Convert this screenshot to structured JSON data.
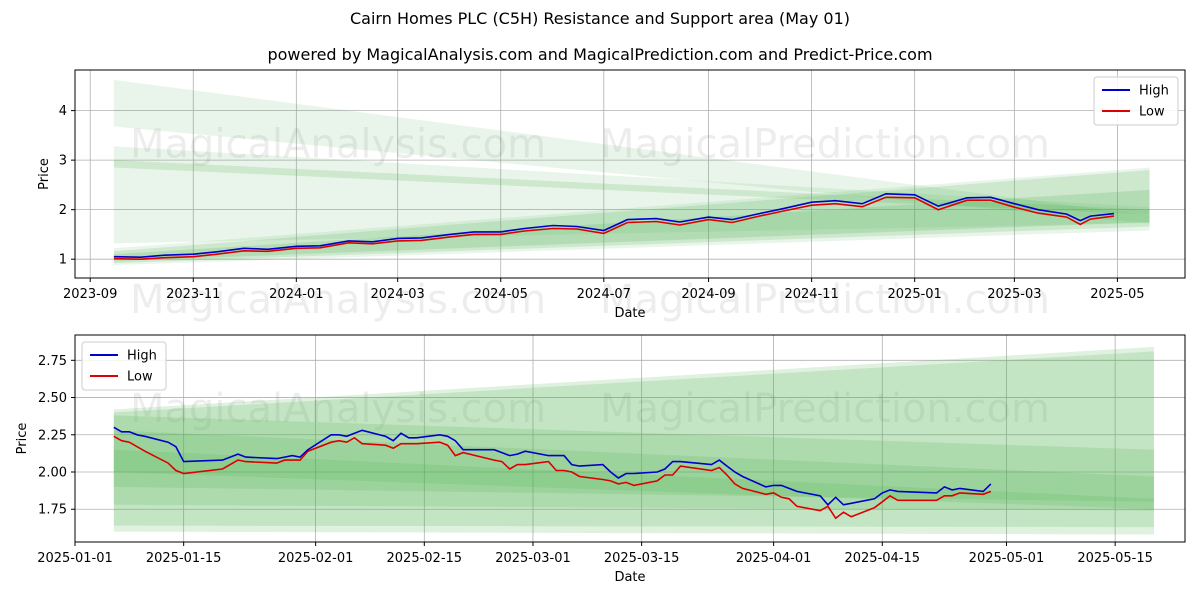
{
  "title": "Cairn Homes PLC (C5H) Resistance and Support area (May 01)",
  "subtitle": "powered by MagicalAnalysis.com and MagicalPrediction.com and Predict-Price.com",
  "watermarks": [
    "MagicalAnalysis.com",
    "MagicalPrediction.com"
  ],
  "colors": {
    "high": "#0000cc",
    "low": "#dd0000",
    "band": "#4caf50",
    "grid": "#b0b0b0"
  },
  "chart_data": [
    {
      "type": "line",
      "panel": "top",
      "xlabel": "Date",
      "ylabel": "Price",
      "x_type": "date",
      "xlim": [
        "2023-08-23",
        "2025-06-10"
      ],
      "ylim": [
        0.62,
        4.82
      ],
      "x_ticks": [
        "2023-09",
        "2023-11",
        "2024-01",
        "2024-03",
        "2024-05",
        "2024-07",
        "2024-09",
        "2024-11",
        "2025-01",
        "2025-03",
        "2025-05"
      ],
      "y_ticks": [
        1,
        2,
        3,
        4
      ],
      "legend": [
        "High",
        "Low"
      ],
      "legend_position": "top-right",
      "grid": true,
      "series": [
        {
          "name": "High",
          "x": [
            "2023-09-15",
            "2023-10-01",
            "2023-10-15",
            "2023-11-01",
            "2023-11-15",
            "2023-12-01",
            "2023-12-15",
            "2024-01-01",
            "2024-01-15",
            "2024-02-01",
            "2024-02-15",
            "2024-03-01",
            "2024-03-15",
            "2024-04-01",
            "2024-04-15",
            "2024-05-01",
            "2024-05-15",
            "2024-06-01",
            "2024-06-15",
            "2024-07-01",
            "2024-07-15",
            "2024-08-01",
            "2024-08-15",
            "2024-09-01",
            "2024-09-15",
            "2024-10-01",
            "2024-10-15",
            "2024-11-01",
            "2024-11-15",
            "2024-12-01",
            "2024-12-15",
            "2025-01-01",
            "2025-01-15",
            "2025-02-01",
            "2025-02-15",
            "2025-03-01",
            "2025-03-15",
            "2025-04-01",
            "2025-04-09",
            "2025-04-15",
            "2025-04-29"
          ],
          "values": [
            1.05,
            1.04,
            1.08,
            1.1,
            1.15,
            1.22,
            1.2,
            1.26,
            1.27,
            1.37,
            1.35,
            1.42,
            1.43,
            1.5,
            1.55,
            1.55,
            1.62,
            1.68,
            1.66,
            1.58,
            1.8,
            1.82,
            1.75,
            1.85,
            1.8,
            1.92,
            2.02,
            2.15,
            2.18,
            2.12,
            2.32,
            2.3,
            2.07,
            2.24,
            2.25,
            2.12,
            2.0,
            1.91,
            1.78,
            1.87,
            1.92
          ]
        },
        {
          "name": "Low",
          "x": [
            "2023-09-15",
            "2023-10-01",
            "2023-10-15",
            "2023-11-01",
            "2023-11-15",
            "2023-12-01",
            "2023-12-15",
            "2024-01-01",
            "2024-01-15",
            "2024-02-01",
            "2024-02-15",
            "2024-03-01",
            "2024-03-15",
            "2024-04-01",
            "2024-04-15",
            "2024-05-01",
            "2024-05-15",
            "2024-06-01",
            "2024-06-15",
            "2024-07-01",
            "2024-07-15",
            "2024-08-01",
            "2024-08-15",
            "2024-09-01",
            "2024-09-15",
            "2024-10-01",
            "2024-10-15",
            "2024-11-01",
            "2024-11-15",
            "2024-12-01",
            "2024-12-15",
            "2025-01-01",
            "2025-01-15",
            "2025-02-01",
            "2025-02-15",
            "2025-03-01",
            "2025-03-15",
            "2025-04-01",
            "2025-04-09",
            "2025-04-15",
            "2025-04-29"
          ],
          "values": [
            1.01,
            1.0,
            1.03,
            1.05,
            1.1,
            1.17,
            1.16,
            1.22,
            1.23,
            1.33,
            1.31,
            1.37,
            1.38,
            1.45,
            1.5,
            1.5,
            1.57,
            1.62,
            1.61,
            1.52,
            1.74,
            1.76,
            1.69,
            1.8,
            1.74,
            1.87,
            1.97,
            2.09,
            2.12,
            2.06,
            2.25,
            2.24,
            2.0,
            2.19,
            2.19,
            2.05,
            1.93,
            1.85,
            1.7,
            1.81,
            1.87
          ]
        }
      ],
      "bands": [
        {
          "x": [
            "2023-09-15",
            "2025-05-20"
          ],
          "upper": [
            4.62,
            1.88
          ],
          "lower": [
            3.68,
            1.72
          ],
          "opacity": 0.12
        },
        {
          "x": [
            "2023-09-15",
            "2025-05-20"
          ],
          "upper": [
            3.28,
            2.05
          ],
          "lower": [
            1.32,
            1.73
          ],
          "opacity": 0.12
        },
        {
          "x": [
            "2023-09-15",
            "2025-05-20"
          ],
          "upper": [
            3.0,
            2.0
          ],
          "lower": [
            2.85,
            1.9
          ],
          "opacity": 0.18
        },
        {
          "x": [
            "2023-09-15",
            "2025-05-20"
          ],
          "upper": [
            1.22,
            2.85
          ],
          "lower": [
            0.88,
            1.58
          ],
          "opacity": 0.12
        },
        {
          "x": [
            "2023-09-15",
            "2025-05-20"
          ],
          "upper": [
            1.16,
            2.8
          ],
          "lower": [
            0.92,
            1.66
          ],
          "opacity": 0.18
        },
        {
          "x": [
            "2023-09-15",
            "2025-05-20"
          ],
          "upper": [
            1.1,
            2.4
          ],
          "lower": [
            0.96,
            1.75
          ],
          "opacity": 0.2
        }
      ]
    },
    {
      "type": "line",
      "panel": "bottom",
      "xlabel": "Date",
      "ylabel": "Price",
      "x_type": "date",
      "xlim": [
        "2025-01-01",
        "2025-05-24"
      ],
      "ylim": [
        1.53,
        2.92
      ],
      "x_ticks": [
        "2025-01-01",
        "2025-01-15",
        "2025-02-01",
        "2025-02-15",
        "2025-03-01",
        "2025-03-15",
        "2025-04-01",
        "2025-04-15",
        "2025-05-01",
        "2025-05-15"
      ],
      "y_ticks": [
        1.75,
        2.0,
        2.25,
        2.5,
        2.75
      ],
      "legend": [
        "High",
        "Low"
      ],
      "legend_position": "top-left",
      "grid": true,
      "series": [
        {
          "name": "High",
          "x": [
            "2025-01-06",
            "2025-01-07",
            "2025-01-08",
            "2025-01-09",
            "2025-01-10",
            "2025-01-13",
            "2025-01-14",
            "2025-01-15",
            "2025-01-20",
            "2025-01-22",
            "2025-01-23",
            "2025-01-27",
            "2025-01-28",
            "2025-01-29",
            "2025-01-30",
            "2025-01-31",
            "2025-02-03",
            "2025-02-04",
            "2025-02-05",
            "2025-02-06",
            "2025-02-07",
            "2025-02-10",
            "2025-02-11",
            "2025-02-12",
            "2025-02-13",
            "2025-02-14",
            "2025-02-17",
            "2025-02-18",
            "2025-02-19",
            "2025-02-20",
            "2025-02-24",
            "2025-02-25",
            "2025-02-26",
            "2025-02-27",
            "2025-02-28",
            "2025-03-03",
            "2025-03-04",
            "2025-03-05",
            "2025-03-06",
            "2025-03-07",
            "2025-03-10",
            "2025-03-11",
            "2025-03-12",
            "2025-03-13",
            "2025-03-14",
            "2025-03-17",
            "2025-03-18",
            "2025-03-19",
            "2025-03-20",
            "2025-03-24",
            "2025-03-25",
            "2025-03-26",
            "2025-03-27",
            "2025-03-28",
            "2025-03-31",
            "2025-04-01",
            "2025-04-02",
            "2025-04-03",
            "2025-04-04",
            "2025-04-07",
            "2025-04-08",
            "2025-04-09",
            "2025-04-10",
            "2025-04-11",
            "2025-04-14",
            "2025-04-15",
            "2025-04-16",
            "2025-04-17",
            "2025-04-22",
            "2025-04-23",
            "2025-04-24",
            "2025-04-25",
            "2025-04-28",
            "2025-04-29"
          ],
          "values": [
            2.3,
            2.27,
            2.27,
            2.25,
            2.24,
            2.2,
            2.17,
            2.07,
            2.08,
            2.12,
            2.1,
            2.09,
            2.1,
            2.11,
            2.1,
            2.15,
            2.25,
            2.25,
            2.24,
            2.26,
            2.28,
            2.24,
            2.21,
            2.26,
            2.23,
            2.23,
            2.25,
            2.24,
            2.21,
            2.15,
            2.15,
            2.13,
            2.11,
            2.12,
            2.14,
            2.11,
            2.11,
            2.11,
            2.05,
            2.04,
            2.05,
            2.0,
            1.96,
            1.99,
            1.99,
            2.0,
            2.02,
            2.07,
            2.07,
            2.05,
            2.08,
            2.04,
            2.0,
            1.97,
            1.9,
            1.91,
            1.91,
            1.89,
            1.87,
            1.84,
            1.78,
            1.83,
            1.78,
            1.79,
            1.82,
            1.86,
            1.88,
            1.87,
            1.86,
            1.9,
            1.88,
            1.89,
            1.87,
            1.92
          ]
        },
        {
          "name": "Low",
          "x": [
            "2025-01-06",
            "2025-01-07",
            "2025-01-08",
            "2025-01-09",
            "2025-01-10",
            "2025-01-13",
            "2025-01-14",
            "2025-01-15",
            "2025-01-20",
            "2025-01-22",
            "2025-01-23",
            "2025-01-27",
            "2025-01-28",
            "2025-01-29",
            "2025-01-30",
            "2025-01-31",
            "2025-02-03",
            "2025-02-04",
            "2025-02-05",
            "2025-02-06",
            "2025-02-07",
            "2025-02-10",
            "2025-02-11",
            "2025-02-12",
            "2025-02-13",
            "2025-02-14",
            "2025-02-17",
            "2025-02-18",
            "2025-02-19",
            "2025-02-20",
            "2025-02-24",
            "2025-02-25",
            "2025-02-26",
            "2025-02-27",
            "2025-02-28",
            "2025-03-03",
            "2025-03-04",
            "2025-03-05",
            "2025-03-06",
            "2025-03-07",
            "2025-03-10",
            "2025-03-11",
            "2025-03-12",
            "2025-03-13",
            "2025-03-14",
            "2025-03-17",
            "2025-03-18",
            "2025-03-19",
            "2025-03-20",
            "2025-03-24",
            "2025-03-25",
            "2025-03-26",
            "2025-03-27",
            "2025-03-28",
            "2025-03-31",
            "2025-04-01",
            "2025-04-02",
            "2025-04-03",
            "2025-04-04",
            "2025-04-07",
            "2025-04-08",
            "2025-04-09",
            "2025-04-10",
            "2025-04-11",
            "2025-04-14",
            "2025-04-15",
            "2025-04-16",
            "2025-04-17",
            "2025-04-22",
            "2025-04-23",
            "2025-04-24",
            "2025-04-25",
            "2025-04-28",
            "2025-04-29"
          ],
          "values": [
            2.24,
            2.21,
            2.2,
            2.17,
            2.14,
            2.06,
            2.01,
            1.99,
            2.02,
            2.08,
            2.07,
            2.06,
            2.08,
            2.08,
            2.08,
            2.14,
            2.2,
            2.21,
            2.2,
            2.23,
            2.19,
            2.18,
            2.16,
            2.19,
            2.19,
            2.19,
            2.2,
            2.18,
            2.11,
            2.13,
            2.08,
            2.07,
            2.02,
            2.05,
            2.05,
            2.07,
            2.01,
            2.01,
            2.0,
            1.97,
            1.95,
            1.94,
            1.92,
            1.93,
            1.91,
            1.94,
            1.98,
            1.98,
            2.04,
            2.01,
            2.03,
            1.98,
            1.92,
            1.89,
            1.85,
            1.86,
            1.83,
            1.82,
            1.77,
            1.74,
            1.77,
            1.69,
            1.73,
            1.7,
            1.76,
            1.8,
            1.84,
            1.81,
            1.81,
            1.84,
            1.84,
            1.86,
            1.85,
            1.87
          ]
        }
      ],
      "bands": [
        {
          "x": [
            "2025-01-06",
            "2025-05-20"
          ],
          "upper": [
            2.42,
            2.84
          ],
          "lower": [
            1.6,
            1.58
          ],
          "opacity": 0.18
        },
        {
          "x": [
            "2025-01-06",
            "2025-05-20"
          ],
          "upper": [
            2.4,
            2.81
          ],
          "lower": [
            1.64,
            1.63
          ],
          "opacity": 0.18
        },
        {
          "x": [
            "2025-01-06",
            "2025-05-20"
          ],
          "upper": [
            2.38,
            2.15
          ],
          "lower": [
            1.78,
            1.74
          ],
          "opacity": 0.18
        },
        {
          "x": [
            "2025-01-06",
            "2025-05-20"
          ],
          "upper": [
            2.28,
            1.97
          ],
          "lower": [
            1.9,
            1.8
          ],
          "opacity": 0.18
        },
        {
          "x": [
            "2025-01-06",
            "2025-05-20"
          ],
          "upper": [
            2.15,
            1.82
          ],
          "lower": [
            2.0,
            1.75
          ],
          "opacity": 0.18
        }
      ]
    }
  ]
}
